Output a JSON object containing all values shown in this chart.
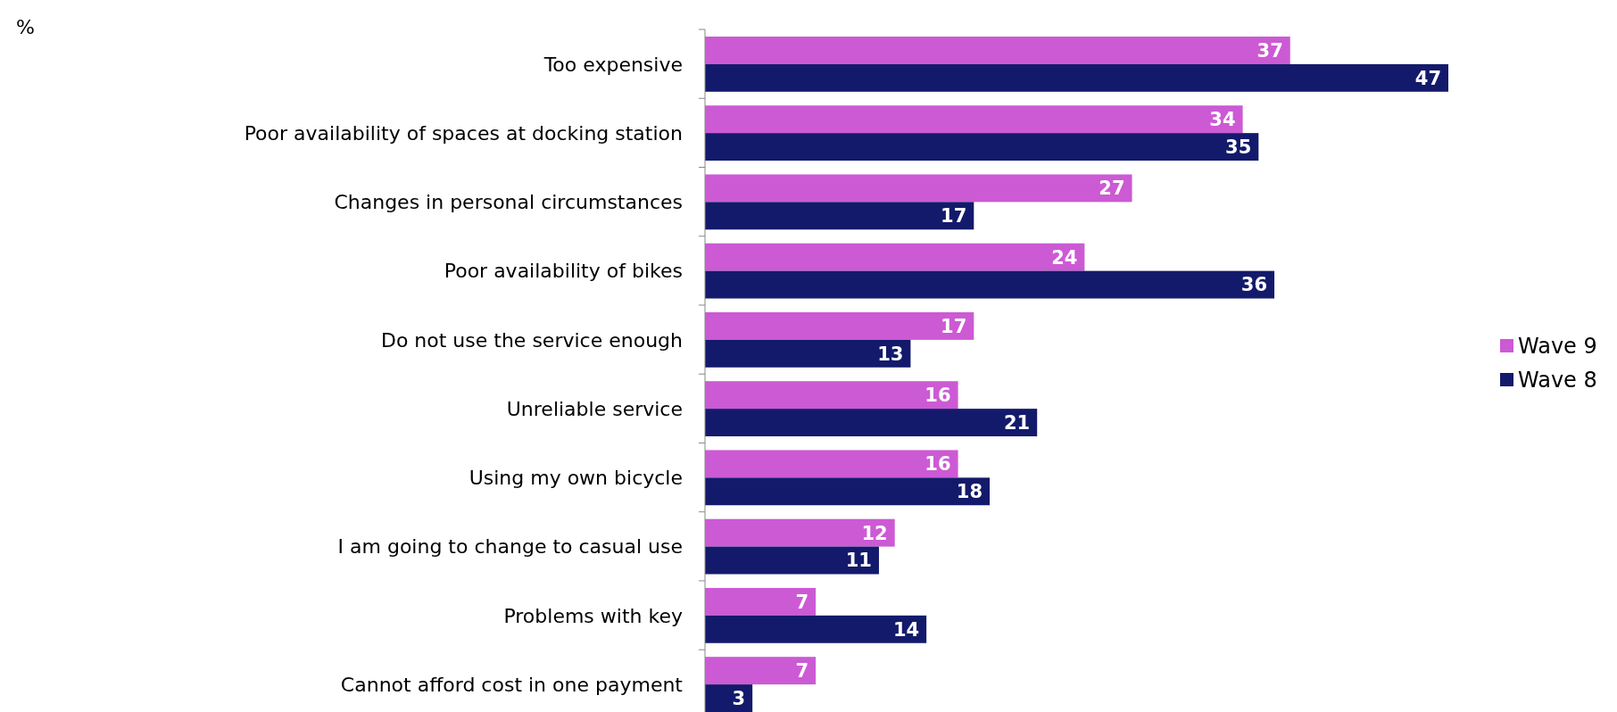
{
  "chart_data": {
    "type": "bar",
    "orientation": "horizontal",
    "categories": [
      "Too expensive",
      "Poor availability of spaces at docking station",
      "Changes in personal circumstances",
      "Poor availability of bikes",
      "Do not use the service enough",
      "Unreliable service",
      "Using my own bicycle",
      "I am going to change to casual use",
      "Problems with key",
      "Cannot afford cost in one payment"
    ],
    "series": [
      {
        "name": "Wave 9",
        "color": "#cc5ad4",
        "values": [
          37,
          34,
          27,
          24,
          17,
          16,
          16,
          12,
          7,
          7
        ]
      },
      {
        "name": "Wave 8",
        "color": "#141a6b",
        "values": [
          47,
          35,
          17,
          36,
          13,
          21,
          18,
          11,
          14,
          3
        ]
      }
    ],
    "data_labels": true,
    "legend": "right",
    "annotations": [
      "%"
    ]
  }
}
